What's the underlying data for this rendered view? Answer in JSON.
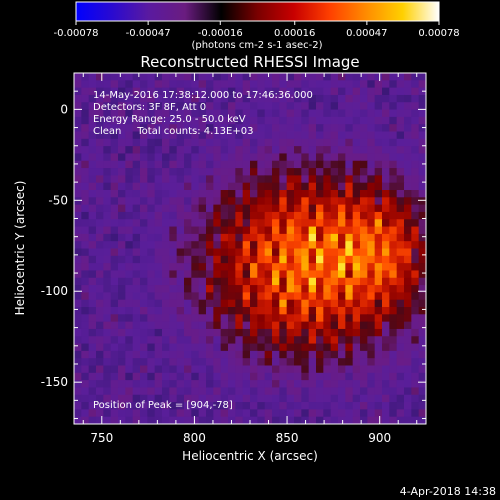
{
  "chart_data": {
    "type": "heatmap",
    "title": "Reconstructed RHESSI Image",
    "xlabel": "Heliocentric X (arcsec)",
    "ylabel": "Heliocentric Y (arcsec)",
    "xlim": [
      735,
      925
    ],
    "ylim": [
      -173,
      20
    ],
    "xticks": [
      750,
      800,
      850,
      900
    ],
    "yticks": [
      0,
      -50,
      -100,
      -150
    ],
    "grid": false,
    "colorbar": {
      "ticks": [
        -0.00078,
        -0.00047,
        -0.00016,
        0.00016,
        0.00047,
        0.00078
      ],
      "tick_labels": [
        "-0.00078",
        "-0.00047",
        "-0.00016",
        "0.00016",
        "0.00047",
        "0.00078"
      ],
      "unit_label": "(photons cm-2 s-1 asec-2)",
      "colors": [
        "#0000ff",
        "#2a0ad0",
        "#5a1aa0",
        "#6a1c80",
        "#000000",
        "#7a0000",
        "#c80000",
        "#ff4000",
        "#ff8c00",
        "#ffd000",
        "#ffffff"
      ]
    },
    "annotations": [
      "14-May-2016 17:38:12.000 to 17:46:36.000",
      "Detectors: 3F 8F, Att 0",
      "Energy Range: 25.0 - 50.0 keV",
      "Clean     Total counts: 4.13E+03",
      "Position of Peak = [904,-78]"
    ],
    "peak_position": [
      904,
      -78
    ],
    "source_center": [
      862,
      -84
    ]
  },
  "footer": {
    "date": "4-Apr-2018 14:38"
  }
}
